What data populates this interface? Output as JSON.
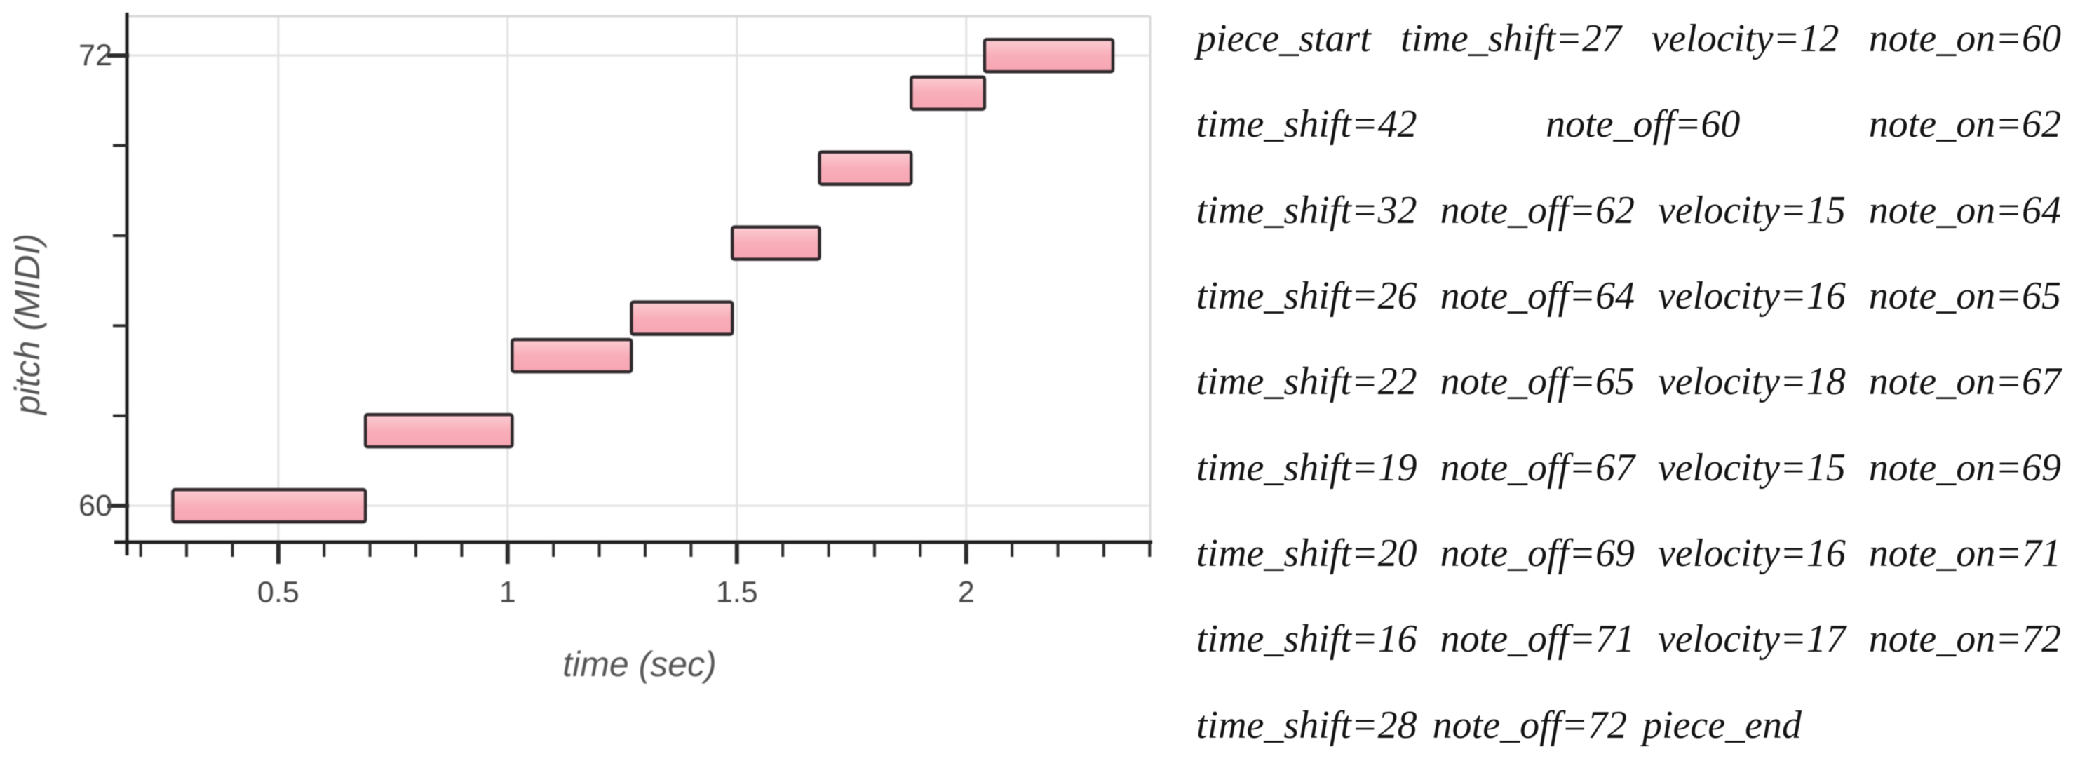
{
  "chart_data": {
    "type": "bar",
    "subtype": "piano-roll",
    "title": "",
    "xlabel": "time (sec)",
    "ylabel": "pitch (MIDI)",
    "xlim": [
      0.17,
      2.401
    ],
    "ylim": [
      59.03,
      73.05
    ],
    "x_major_ticks": [
      0.5,
      1,
      1.5,
      2
    ],
    "x_major_tick_labels": [
      "0.5",
      "1",
      "1.5",
      "2"
    ],
    "x_minor_tick_step": 0.1,
    "x_minor_tick_range": [
      0.2,
      2.4
    ],
    "y_major_ticks": [
      60,
      72
    ],
    "y_major_tick_labels": [
      "60",
      "72"
    ],
    "y_minor_ticks": [
      62.4,
      64.8,
      67.2,
      69.6
    ],
    "grid": true,
    "legend": null,
    "notes": [
      {
        "pitch": 60,
        "start": 0.27,
        "end": 0.69,
        "velocity": 12
      },
      {
        "pitch": 62,
        "start": 0.69,
        "end": 1.01,
        "velocity": 12
      },
      {
        "pitch": 64,
        "start": 1.01,
        "end": 1.27,
        "velocity": 15
      },
      {
        "pitch": 65,
        "start": 1.27,
        "end": 1.49,
        "velocity": 16
      },
      {
        "pitch": 67,
        "start": 1.49,
        "end": 1.68,
        "velocity": 18
      },
      {
        "pitch": 69,
        "start": 1.68,
        "end": 1.88,
        "velocity": 15
      },
      {
        "pitch": 71,
        "start": 1.88,
        "end": 2.04,
        "velocity": 16
      },
      {
        "pitch": 72,
        "start": 2.04,
        "end": 2.32,
        "velocity": 17
      }
    ],
    "colors": {
      "note_fill": "#f7a9b4",
      "note_fill_light": "#fbccd2",
      "note_stroke": "#2e282b",
      "grid": "#e2e2e2",
      "spine_light": "#d8d8d8",
      "axis": "#1f1f1f",
      "tick": "#2a2a2a",
      "tick_label": "#454545",
      "axis_label": "#555555"
    }
  },
  "token_text": {
    "lines": [
      {
        "justify": true,
        "tokens": [
          "piece_start",
          "time_shift=27",
          "velocity=12",
          "note_on=60"
        ]
      },
      {
        "justify": true,
        "tokens": [
          "time_shift=42",
          "note_off=60",
          "note_on=62"
        ]
      },
      {
        "justify": true,
        "tokens": [
          "time_shift=32",
          "note_off=62",
          "velocity=15",
          "note_on=64"
        ]
      },
      {
        "justify": true,
        "tokens": [
          "time_shift=26",
          "note_off=64",
          "velocity=16",
          "note_on=65"
        ]
      },
      {
        "justify": true,
        "tokens": [
          "time_shift=22",
          "note_off=65",
          "velocity=18",
          "note_on=67"
        ]
      },
      {
        "justify": true,
        "tokens": [
          "time_shift=19",
          "note_off=67",
          "velocity=15",
          "note_on=69"
        ]
      },
      {
        "justify": true,
        "tokens": [
          "time_shift=20",
          "note_off=69",
          "velocity=16",
          "note_on=71"
        ]
      },
      {
        "justify": true,
        "tokens": [
          "time_shift=16",
          "note_off=71",
          "velocity=17",
          "note_on=72"
        ]
      },
      {
        "justify": false,
        "tokens": [
          "time_shift=28",
          "note_off=72",
          "piece_end"
        ]
      }
    ]
  }
}
